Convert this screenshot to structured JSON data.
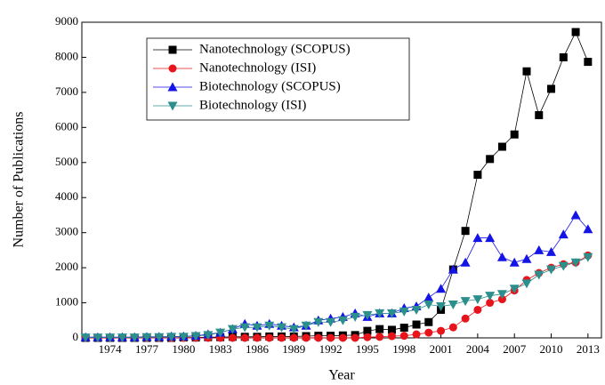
{
  "chart_data": {
    "type": "line",
    "x_label": "Year",
    "y_label": "Number of Publications",
    "x": [
      1972,
      1973,
      1974,
      1975,
      1976,
      1977,
      1978,
      1979,
      1980,
      1981,
      1982,
      1983,
      1984,
      1985,
      1986,
      1987,
      1988,
      1989,
      1990,
      1991,
      1992,
      1993,
      1994,
      1995,
      1996,
      1997,
      1998,
      1999,
      2000,
      2001,
      2002,
      2003,
      2004,
      2005,
      2006,
      2007,
      2008,
      2009,
      2010,
      2011,
      2012,
      2013
    ],
    "xlim": [
      1971.7,
      2014.1
    ],
    "xticks": [
      1974,
      1977,
      1980,
      1983,
      1986,
      1989,
      1992,
      1995,
      1998,
      2001,
      2004,
      2007,
      2010,
      2013
    ],
    "ylim": [
      0,
      9000
    ],
    "yticks": [
      0,
      1000,
      2000,
      3000,
      4000,
      5000,
      6000,
      7000,
      8000,
      9000
    ],
    "legend": "upper left",
    "series": [
      {
        "name": "Nanotechnology (SCOPUS)",
        "color": "#000000",
        "marker": "square",
        "values": [
          0,
          0,
          0,
          0,
          0,
          0,
          0,
          0,
          10,
          10,
          20,
          20,
          30,
          30,
          30,
          40,
          40,
          40,
          50,
          60,
          60,
          70,
          80,
          200,
          250,
          230,
          290,
          380,
          450,
          800,
          1950,
          3050,
          4650,
          5100,
          5450,
          5800,
          7600,
          6350,
          7100,
          8000,
          8720,
          7870
        ]
      },
      {
        "name": "Nanotechnology (ISI)",
        "color": "#e8141b",
        "marker": "circle",
        "values": [
          0,
          0,
          0,
          0,
          0,
          0,
          0,
          0,
          0,
          0,
          0,
          0,
          0,
          0,
          0,
          0,
          0,
          0,
          0,
          0,
          0,
          0,
          0,
          20,
          30,
          50,
          60,
          100,
          150,
          200,
          300,
          550,
          800,
          1000,
          1100,
          1350,
          1650,
          1850,
          2000,
          2100,
          2150,
          2350
        ]
      },
      {
        "name": "Biotechnology (SCOPUS)",
        "color": "#1414e6",
        "marker": "triangle-up",
        "values": [
          20,
          20,
          20,
          20,
          20,
          30,
          30,
          40,
          40,
          60,
          100,
          150,
          250,
          400,
          350,
          400,
          350,
          300,
          350,
          500,
          550,
          600,
          700,
          600,
          700,
          700,
          850,
          900,
          1150,
          1400,
          1950,
          2150,
          2850,
          2850,
          2300,
          2150,
          2250,
          2500,
          2450,
          2950,
          3500,
          3100
        ]
      },
      {
        "name": "Biotechnology (ISI)",
        "color": "#2b8f8c",
        "marker": "triangle-down",
        "values": [
          10,
          10,
          10,
          10,
          10,
          20,
          20,
          30,
          30,
          50,
          80,
          150,
          250,
          300,
          300,
          350,
          300,
          250,
          350,
          450,
          450,
          500,
          600,
          650,
          700,
          700,
          750,
          800,
          950,
          900,
          950,
          1050,
          1100,
          1200,
          1250,
          1400,
          1550,
          1800,
          1950,
          2050,
          2150,
          2300
        ]
      }
    ]
  }
}
